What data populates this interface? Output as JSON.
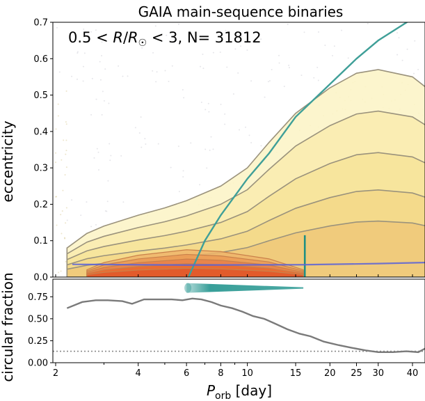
{
  "chart_data": [
    {
      "type": "scatter",
      "title": "GAIA main-sequence binaries",
      "annotation": "0.5 < R/R☉ < 3, N= 31812",
      "annotation_parts": {
        "lead": "0.5 < ",
        "var": "R",
        "slash": "/",
        "var2": "R",
        "sub": "☉",
        "tail": " < 3, N= 31812"
      },
      "ylabel": "eccentricity",
      "xlim": [
        2,
        45
      ],
      "ylim": [
        0,
        0.7
      ],
      "xscale": "log",
      "yticks": [
        "0.0",
        "0.1",
        "0.2",
        "0.3",
        "0.4",
        "0.5",
        "0.6",
        "0.7"
      ],
      "ytick_values": [
        0,
        0.1,
        0.2,
        0.3,
        0.4,
        0.5,
        0.6,
        0.7
      ],
      "grid": false,
      "colors": {
        "density_outer": "#fbf0b8",
        "density_inner": "#e8622a",
        "contour": "#9a927c",
        "teal": "#3f9f98",
        "blue": "#5a63d8"
      },
      "envelope_upper": [
        {
          "x": 2.2,
          "e": 0.08
        },
        {
          "x": 2.6,
          "e": 0.12
        },
        {
          "x": 3,
          "e": 0.14
        },
        {
          "x": 4,
          "e": 0.17
        },
        {
          "x": 5,
          "e": 0.19
        },
        {
          "x": 6,
          "e": 0.21
        },
        {
          "x": 8,
          "e": 0.25
        },
        {
          "x": 10,
          "e": 0.3
        },
        {
          "x": 12,
          "e": 0.37
        },
        {
          "x": 15,
          "e": 0.45
        },
        {
          "x": 20,
          "e": 0.52
        },
        {
          "x": 25,
          "e": 0.56
        },
        {
          "x": 30,
          "e": 0.57
        },
        {
          "x": 40,
          "e": 0.55
        },
        {
          "x": 45,
          "e": 0.52
        }
      ],
      "dense_core_upper": [
        {
          "x": 2.6,
          "e": 0.02
        },
        {
          "x": 3,
          "e": 0.04
        },
        {
          "x": 4,
          "e": 0.06
        },
        {
          "x": 6,
          "e": 0.075
        },
        {
          "x": 8,
          "e": 0.07
        },
        {
          "x": 12,
          "e": 0.05
        },
        {
          "x": 16,
          "e": 0.02
        }
      ],
      "tidal_curve": [
        {
          "x": 6.1,
          "e": 0.0
        },
        {
          "x": 7,
          "e": 0.1
        },
        {
          "x": 8,
          "e": 0.17
        },
        {
          "x": 10,
          "e": 0.27
        },
        {
          "x": 12,
          "e": 0.34
        },
        {
          "x": 15,
          "e": 0.44
        },
        {
          "x": 20,
          "e": 0.53
        },
        {
          "x": 25,
          "e": 0.6
        },
        {
          "x": 30,
          "e": 0.65
        },
        {
          "x": 40,
          "e": 0.71
        }
      ],
      "cutoff_line": {
        "x": 16.2,
        "e_top": 0.115
      },
      "blue_line": [
        {
          "x": 2.3,
          "e": 0.035
        },
        {
          "x": 6,
          "e": 0.033
        },
        {
          "x": 16,
          "e": 0.034
        },
        {
          "x": 30,
          "e": 0.037
        },
        {
          "x": 45,
          "e": 0.04
        }
      ]
    },
    {
      "type": "line",
      "ylabel": "circular fraction",
      "xlabel_var": "P",
      "xlabel_sub": "orb",
      "xlabel_unit": " [day]",
      "xscale": "log",
      "xlim": [
        2,
        45
      ],
      "ylim": [
        0,
        0.95
      ],
      "xticks": [
        "2",
        "4",
        "6",
        "8",
        "10",
        "15",
        "20",
        "25",
        "30",
        "40"
      ],
      "xtick_values": [
        2,
        4,
        6,
        8,
        10,
        15,
        20,
        25,
        30,
        40
      ],
      "yticks": [
        "0.00",
        "0.25",
        "0.50",
        "0.75"
      ],
      "ytick_values": [
        0,
        0.25,
        0.5,
        0.75
      ],
      "reference_level": 0.13,
      "series": [
        {
          "color": "#7a7a7a",
          "x": [
            2.2,
            2.5,
            2.8,
            3.1,
            3.5,
            3.8,
            4.2,
            4.7,
            5.3,
            5.8,
            6.3,
            6.8,
            7.4,
            8.0,
            8.8,
            9.6,
            10.5,
            11.5,
            12.5,
            14.0,
            15.5,
            17.0,
            19.0,
            21.5,
            24.0,
            27.0,
            30.0,
            34.0,
            38.0,
            42.0,
            45.0
          ],
          "y": [
            0.62,
            0.69,
            0.71,
            0.71,
            0.7,
            0.67,
            0.72,
            0.72,
            0.72,
            0.71,
            0.73,
            0.72,
            0.69,
            0.65,
            0.62,
            0.58,
            0.53,
            0.5,
            0.45,
            0.38,
            0.33,
            0.3,
            0.24,
            0.2,
            0.17,
            0.14,
            0.12,
            0.12,
            0.13,
            0.12,
            0.17
          ]
        }
      ],
      "range_marker": {
        "x_start": 6.0,
        "x_end": 16.0,
        "y": 0.85,
        "color": "#2e9a94"
      }
    }
  ]
}
